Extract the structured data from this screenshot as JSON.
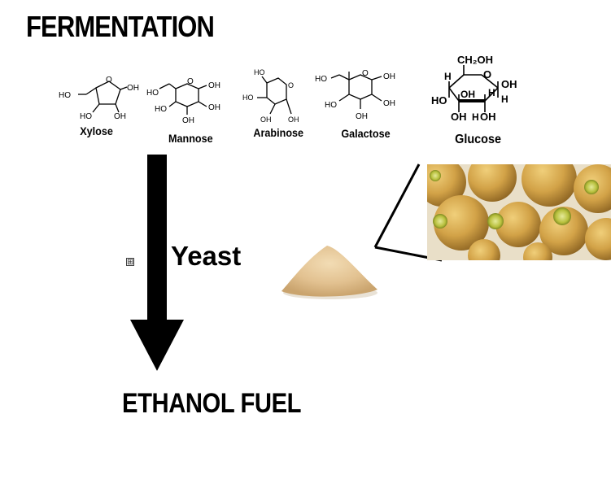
{
  "title": "FERMENTATION",
  "sugars": {
    "xylose": {
      "name": "Xylose",
      "groups": [
        "HO",
        "OH",
        "HO",
        "OH",
        "O"
      ]
    },
    "mannose": {
      "name": "Mannose",
      "groups": [
        "HO",
        "OH",
        "HO",
        "OH",
        "OH",
        "O"
      ]
    },
    "arabinose": {
      "name": "Arabinose",
      "groups": [
        "HO",
        "HO",
        "OH",
        "OH",
        "O"
      ]
    },
    "galactose": {
      "name": "Galactose",
      "groups": [
        "HO",
        "OH",
        "HO",
        "OH",
        "OH",
        "O"
      ]
    },
    "glucose": {
      "name": "Glucose",
      "groups": [
        "CH₂OH",
        "H",
        "O",
        "OH",
        "HO",
        "OH",
        "H",
        "H",
        "OH",
        "H",
        "OH"
      ]
    }
  },
  "process": {
    "agent_label": "Yeast",
    "product_label": "ETHANOL FUEL",
    "expand_glyph": "⊞"
  },
  "colors": {
    "arrow": "#000000",
    "powder": "#e6c89a",
    "yeast_cell": "#c99a3a",
    "yeast_bud": "#b7c23a"
  }
}
